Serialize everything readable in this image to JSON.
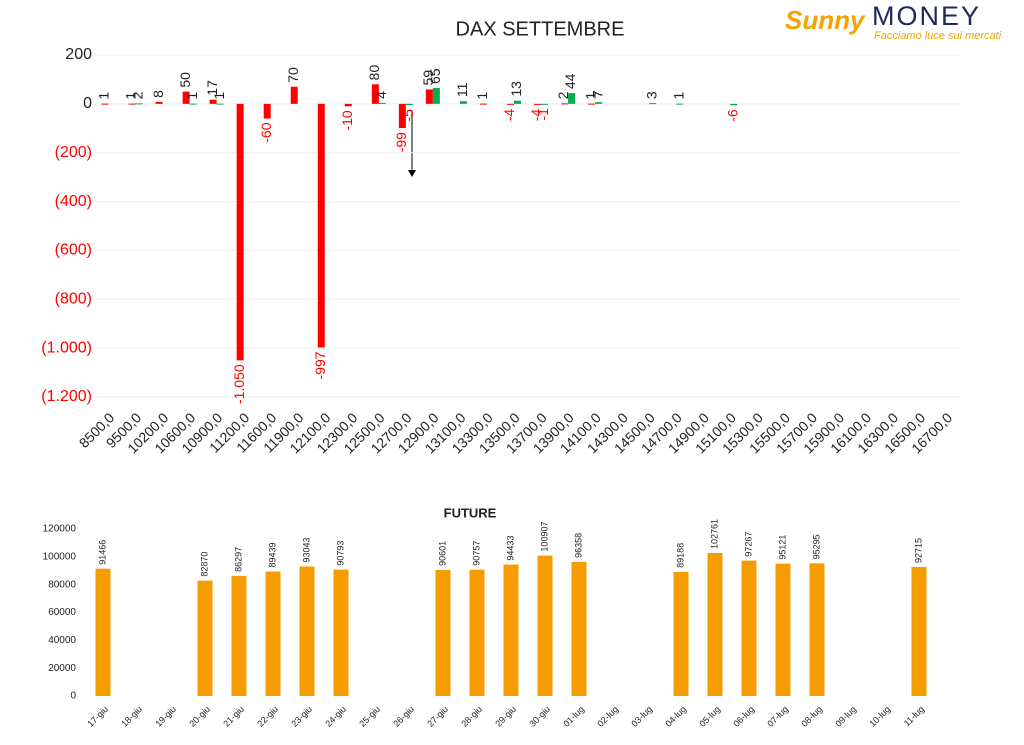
{
  "logo": {
    "brand": "Sunny",
    "name": "MONEY",
    "tagline": "Facciamo luce sui mercati"
  },
  "chart_data": [
    {
      "type": "bar",
      "title": "DAX SETTEMBRE",
      "categories": [
        "8500,0",
        "9500,0",
        "10200,0",
        "10600,0",
        "10900,0",
        "11200,0",
        "11600,0",
        "11900,0",
        "12100,0",
        "12300,0",
        "12500,0",
        "12700,0",
        "12900,0",
        "13100,0",
        "13300,0",
        "13500,0",
        "13700,0",
        "13900,0",
        "14100,0",
        "14300,0",
        "14500,0",
        "14700,0",
        "14900,0",
        "15100,0",
        "15300,0",
        "15500,0",
        "15700,0",
        "15900,0",
        "16100,0",
        "16300,0",
        "16500,0",
        "16700,0"
      ],
      "series": [
        {
          "name": "red",
          "color": "#ff0000",
          "values": [
            1,
            1,
            8,
            50,
            17,
            -1050,
            -60,
            70,
            -997,
            -10,
            80,
            -99,
            59,
            null,
            1,
            -4,
            -4,
            2,
            1,
            null,
            null,
            null,
            null,
            null,
            null,
            null,
            null,
            null,
            null,
            null,
            null,
            null
          ],
          "value_labels": [
            "1",
            "1",
            "8",
            "50",
            "17",
            "-1.050",
            "-60",
            "70",
            "-997",
            "-10",
            "80",
            "-99",
            "59",
            null,
            "1",
            "-4",
            "-4",
            "2",
            "1",
            null,
            null,
            null,
            null,
            null,
            null,
            null,
            null,
            null,
            null,
            null,
            null,
            null
          ]
        },
        {
          "name": "green",
          "color": "#00b050",
          "values": [
            null,
            2,
            null,
            1,
            1,
            null,
            null,
            null,
            null,
            null,
            4,
            -5,
            65,
            11,
            null,
            13,
            -1,
            44,
            7,
            null,
            3,
            1,
            null,
            -6,
            null,
            null,
            null,
            null,
            null,
            null,
            null,
            null
          ]
        }
      ],
      "ylim": [
        -1200,
        200
      ],
      "yticks": [
        200,
        0,
        {
          "value": -200,
          "label": "(200)"
        },
        {
          "value": -400,
          "label": "(400)"
        },
        {
          "value": -600,
          "label": "(600)"
        },
        {
          "value": -800,
          "label": "(800)"
        },
        {
          "value": -1000,
          "label": "(1.000)"
        },
        {
          "value": -1200,
          "label": "(1.200)"
        }
      ],
      "grid": true
    },
    {
      "type": "bar",
      "title": "FUTURE",
      "categories": [
        "17-giu",
        "18-giu",
        "19-giu",
        "20-giu",
        "21-giu",
        "22-giu",
        "23-giu",
        "24-giu",
        "25-giu",
        "26-giu",
        "27-giu",
        "28-giu",
        "29-giu",
        "30-giu",
        "01-lug",
        "02-lug",
        "03-lug",
        "04-lug",
        "05-lug",
        "06-lug",
        "07-lug",
        "08-lug",
        "09-lug",
        "10-lug",
        "11-lug"
      ],
      "series": [
        {
          "name": "FUTURE",
          "color": "#f59c00",
          "values": [
            91466,
            null,
            null,
            82870,
            86297,
            89439,
            93043,
            90793,
            null,
            null,
            90601,
            90757,
            94433,
            100907,
            96358,
            null,
            null,
            89188,
            102761,
            97267,
            95121,
            95295,
            null,
            null,
            92715
          ]
        }
      ],
      "ylim": [
        0,
        120000
      ],
      "yticks": [
        0,
        20000,
        40000,
        60000,
        80000,
        100000,
        120000
      ],
      "grid": false
    }
  ]
}
